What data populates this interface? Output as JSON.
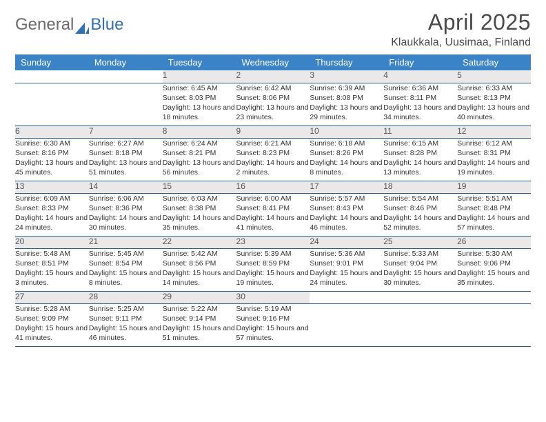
{
  "brand": {
    "part1": "General",
    "part2": "Blue"
  },
  "title": "April 2025",
  "location": "Klaukkala, Uusimaa, Finland",
  "colors": {
    "header_bg": "#3b83c7",
    "header_text": "#ffffff",
    "daynum_bg": "#e9e9e9",
    "border": "#2a5d8f",
    "brand_gray": "#6a6a6a",
    "brand_blue": "#2f71b8"
  },
  "weekdays": [
    "Sunday",
    "Monday",
    "Tuesday",
    "Wednesday",
    "Thursday",
    "Friday",
    "Saturday"
  ],
  "first_weekday_index": 2,
  "days": [
    {
      "n": 1,
      "sunrise": "6:45 AM",
      "sunset": "8:03 PM",
      "daylight": "13 hours and 18 minutes."
    },
    {
      "n": 2,
      "sunrise": "6:42 AM",
      "sunset": "8:06 PM",
      "daylight": "13 hours and 23 minutes."
    },
    {
      "n": 3,
      "sunrise": "6:39 AM",
      "sunset": "8:08 PM",
      "daylight": "13 hours and 29 minutes."
    },
    {
      "n": 4,
      "sunrise": "6:36 AM",
      "sunset": "8:11 PM",
      "daylight": "13 hours and 34 minutes."
    },
    {
      "n": 5,
      "sunrise": "6:33 AM",
      "sunset": "8:13 PM",
      "daylight": "13 hours and 40 minutes."
    },
    {
      "n": 6,
      "sunrise": "6:30 AM",
      "sunset": "8:16 PM",
      "daylight": "13 hours and 45 minutes."
    },
    {
      "n": 7,
      "sunrise": "6:27 AM",
      "sunset": "8:18 PM",
      "daylight": "13 hours and 51 minutes."
    },
    {
      "n": 8,
      "sunrise": "6:24 AM",
      "sunset": "8:21 PM",
      "daylight": "13 hours and 56 minutes."
    },
    {
      "n": 9,
      "sunrise": "6:21 AM",
      "sunset": "8:23 PM",
      "daylight": "14 hours and 2 minutes."
    },
    {
      "n": 10,
      "sunrise": "6:18 AM",
      "sunset": "8:26 PM",
      "daylight": "14 hours and 8 minutes."
    },
    {
      "n": 11,
      "sunrise": "6:15 AM",
      "sunset": "8:28 PM",
      "daylight": "14 hours and 13 minutes."
    },
    {
      "n": 12,
      "sunrise": "6:12 AM",
      "sunset": "8:31 PM",
      "daylight": "14 hours and 19 minutes."
    },
    {
      "n": 13,
      "sunrise": "6:09 AM",
      "sunset": "8:33 PM",
      "daylight": "14 hours and 24 minutes."
    },
    {
      "n": 14,
      "sunrise": "6:06 AM",
      "sunset": "8:36 PM",
      "daylight": "14 hours and 30 minutes."
    },
    {
      "n": 15,
      "sunrise": "6:03 AM",
      "sunset": "8:38 PM",
      "daylight": "14 hours and 35 minutes."
    },
    {
      "n": 16,
      "sunrise": "6:00 AM",
      "sunset": "8:41 PM",
      "daylight": "14 hours and 41 minutes."
    },
    {
      "n": 17,
      "sunrise": "5:57 AM",
      "sunset": "8:43 PM",
      "daylight": "14 hours and 46 minutes."
    },
    {
      "n": 18,
      "sunrise": "5:54 AM",
      "sunset": "8:46 PM",
      "daylight": "14 hours and 52 minutes."
    },
    {
      "n": 19,
      "sunrise": "5:51 AM",
      "sunset": "8:48 PM",
      "daylight": "14 hours and 57 minutes."
    },
    {
      "n": 20,
      "sunrise": "5:48 AM",
      "sunset": "8:51 PM",
      "daylight": "15 hours and 3 minutes."
    },
    {
      "n": 21,
      "sunrise": "5:45 AM",
      "sunset": "8:54 PM",
      "daylight": "15 hours and 8 minutes."
    },
    {
      "n": 22,
      "sunrise": "5:42 AM",
      "sunset": "8:56 PM",
      "daylight": "15 hours and 14 minutes."
    },
    {
      "n": 23,
      "sunrise": "5:39 AM",
      "sunset": "8:59 PM",
      "daylight": "15 hours and 19 minutes."
    },
    {
      "n": 24,
      "sunrise": "5:36 AM",
      "sunset": "9:01 PM",
      "daylight": "15 hours and 24 minutes."
    },
    {
      "n": 25,
      "sunrise": "5:33 AM",
      "sunset": "9:04 PM",
      "daylight": "15 hours and 30 minutes."
    },
    {
      "n": 26,
      "sunrise": "5:30 AM",
      "sunset": "9:06 PM",
      "daylight": "15 hours and 35 minutes."
    },
    {
      "n": 27,
      "sunrise": "5:28 AM",
      "sunset": "9:09 PM",
      "daylight": "15 hours and 41 minutes."
    },
    {
      "n": 28,
      "sunrise": "5:25 AM",
      "sunset": "9:11 PM",
      "daylight": "15 hours and 46 minutes."
    },
    {
      "n": 29,
      "sunrise": "5:22 AM",
      "sunset": "9:14 PM",
      "daylight": "15 hours and 51 minutes."
    },
    {
      "n": 30,
      "sunrise": "5:19 AM",
      "sunset": "9:16 PM",
      "daylight": "15 hours and 57 minutes."
    }
  ],
  "labels": {
    "sunrise": "Sunrise:",
    "sunset": "Sunset:",
    "daylight": "Daylight:"
  }
}
